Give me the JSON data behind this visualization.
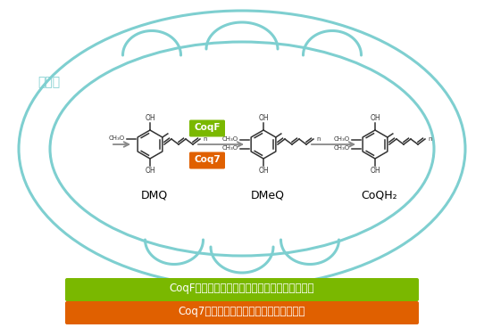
{
  "bg_color": "#ffffff",
  "mito_color": "#7ecfd0",
  "label_xianliangti": "线粒体",
  "label_color": "#7ecfd0",
  "dmq_label": "DMQ",
  "dmeq_label": "DMeQ",
  "coqh2_label": "CoQH₂",
  "coqf_label": "CoqF",
  "coq7_label": "Coq7",
  "coqf_bg": "#7ab800",
  "coq7_bg": "#e06000",
  "legend_coqf_text": "CoqF（黄素单加氧酶）：植物，绿藻，疾原虫等",
  "legend_coq7_text": "Coq7（二铁羟化酶）：人，动物，真菌等",
  "legend_coqf_bg": "#7ab800",
  "legend_coq7_bg": "#e06000",
  "arrow_color": "#888888",
  "mol_color": "#333333"
}
